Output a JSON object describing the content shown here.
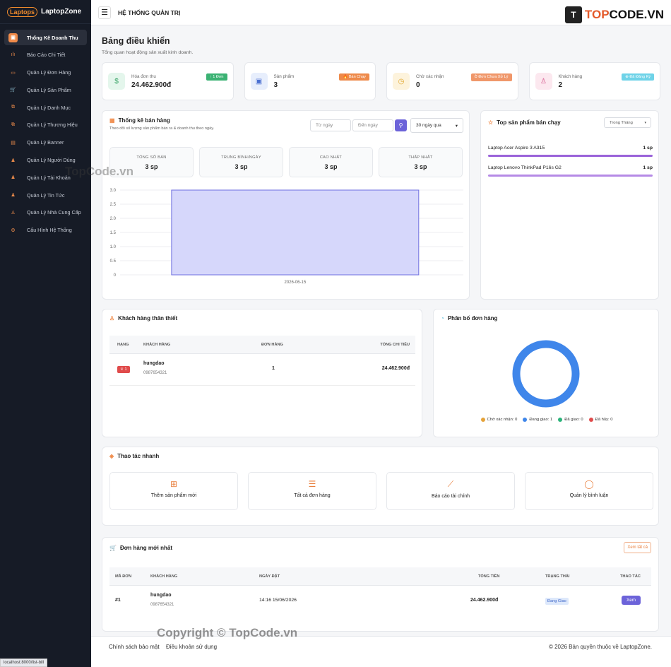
{
  "sidebar": {
    "logo_mark": "Laptops",
    "logo_text": "LaptopZone",
    "items": [
      {
        "label": "Thống Kê Doanh Thu",
        "icon": "box-icon",
        "active": true
      },
      {
        "label": "Báo Cáo Chi Tiết",
        "icon": "bar-chart-icon"
      },
      {
        "label": "Quản Lý Đơn Hàng",
        "icon": "card-icon"
      },
      {
        "label": "Quản Lý Sản Phẩm",
        "icon": "cart-icon"
      },
      {
        "label": "Quản Lý Danh Mục",
        "icon": "copy-icon"
      },
      {
        "label": "Quản Lý Thương Hiệu",
        "icon": "copy-icon"
      },
      {
        "label": "Quản Lý Banner",
        "icon": "file-icon"
      },
      {
        "label": "Quản Lý Người Dùng",
        "icon": "users-icon"
      },
      {
        "label": "Quản Lý Tài Khoản",
        "icon": "users-icon"
      },
      {
        "label": "Quản Lý Tin Tức",
        "icon": "users-icon"
      },
      {
        "label": "Quản Lý Nhà Cung Cấp",
        "icon": "user-icon"
      },
      {
        "label": "Cấu Hình Hệ Thống",
        "icon": "gear-icon"
      }
    ]
  },
  "header": {
    "title": "HỆ THỐNG QUẢN TRỊ",
    "brand_a": "TOP",
    "brand_b": "CODE.VN",
    "brand_mark": "T"
  },
  "page": {
    "title": "Bảng điều khiển",
    "subtitle": "Tổng quan hoạt động sản xuất kinh doanh."
  },
  "stats": [
    {
      "label": "Hóa đơn thu",
      "value": "24.462.900đ",
      "badge": "↑ 1 Đơn",
      "badge_color": "#3bb273",
      "icon": "$",
      "icon_bg": "#e4f6ec",
      "icon_color": "#2e9e5e"
    },
    {
      "label": "Sản phẩm",
      "value": "3",
      "badge": "🔥 Bán Chạy",
      "badge_color": "#ee8a4a",
      "icon": "▣",
      "icon_bg": "#e7eefc",
      "icon_color": "#4a6fd1"
    },
    {
      "label": "Chờ xác nhận",
      "value": "0",
      "badge": "⏱ Đơn Chưa Xử Lý",
      "badge_color": "#f0976a",
      "icon": "◷",
      "icon_bg": "#fdf3dc",
      "icon_color": "#e0a52a"
    },
    {
      "label": "Khách hàng",
      "value": "2",
      "badge": "⊕ Đã Đăng Ký",
      "badge_color": "#6fd3e8",
      "icon": "♙",
      "icon_bg": "#fce8ef",
      "icon_color": "#d4538a"
    }
  ],
  "sales": {
    "title": "Thống kê bán hàng",
    "subtitle": "Theo dõi số lượng sản phẩm bán ra & doanh thu theo ngày.",
    "from_placeholder": "Từ ngày",
    "to_placeholder": "Đến ngày",
    "range": "30 ngày qua",
    "minis": [
      {
        "label": "TỔNG SỐ BÁN",
        "value": "3 sp"
      },
      {
        "label": "TRUNG BÌNH/NGÀY",
        "value": "3 sp"
      },
      {
        "label": "CAO NHẤT",
        "value": "3 sp"
      },
      {
        "label": "THẤP NHẤT",
        "value": "3 sp"
      }
    ]
  },
  "chart_data": {
    "type": "bar",
    "categories": [
      "2026-06-15"
    ],
    "values": [
      3
    ],
    "title": "",
    "xlabel": "",
    "ylabel": "",
    "ylim": [
      0,
      3
    ],
    "yticks": [
      "3.0",
      "2.5",
      "2.0",
      "1.5",
      "1.0",
      "0.5",
      "0"
    ],
    "grid": true,
    "bar_color": "#d6d7fb",
    "bar_border": "#6f6fe0"
  },
  "top_products": {
    "title": "Top sản phẩm bán chạy",
    "filter": "Trong Tháng",
    "items": [
      {
        "name": "Laptop Acer Aspire 3 A315",
        "qty": "1 sp",
        "color": "#9a63d9"
      },
      {
        "name": "Laptop Lenovo ThinkPad P16s G2",
        "qty": "1 sp",
        "color": "#b58ae6"
      }
    ]
  },
  "loyal": {
    "title": "Khách hàng thân thiết",
    "headers": [
      "HẠNG",
      "KHÁCH HÀNG",
      "ĐƠN HÀNG",
      "TỔNG CHI TIÊU"
    ],
    "rows": [
      {
        "rank": "♕ 1",
        "name": "hungdao",
        "phone": "0987654321",
        "orders": "1",
        "total": "24.462.900đ"
      }
    ]
  },
  "distribution": {
    "title": "Phân bố đơn hàng",
    "legend": [
      {
        "label": "Chờ xác nhận: 0",
        "color": "#e5a33a",
        "value": 0
      },
      {
        "label": "Đang giao: 1",
        "color": "#3f86ea",
        "value": 1
      },
      {
        "label": "Đã giao: 0",
        "color": "#2bb37a",
        "value": 0
      },
      {
        "label": "Đã hủy: 0",
        "color": "#e04b4b",
        "value": 0
      }
    ]
  },
  "quick": {
    "title": "Thao tác nhanh",
    "actions": [
      {
        "label": "Thêm sản phẩm mới",
        "icon": "⊞"
      },
      {
        "label": "Tất cả đơn hàng",
        "icon": "☰"
      },
      {
        "label": "Báo cáo tài chính",
        "icon": "⟋"
      },
      {
        "label": "Quản lý bình luận",
        "icon": "◯"
      }
    ]
  },
  "orders": {
    "title": "Đơn hàng mới nhất",
    "view_all": "Xem tất cả",
    "headers": [
      "MÃ ĐƠN",
      "KHÁCH HÀNG",
      "NGÀY ĐẶT",
      "TỔNG TIỀN",
      "TRẠNG THÁI",
      "THAO TÁC"
    ],
    "rows": [
      {
        "id": "#1",
        "name": "hungdao",
        "phone": "0987654321",
        "date": "14:16 15/06/2026",
        "total": "24.462.900đ",
        "status": "Đang Giao",
        "action": "Xem"
      }
    ]
  },
  "footer": {
    "privacy": "Chính sách bảo mật",
    "terms": "Điều khoản sử dụng",
    "copyright": "© 2026 Bản quyền thuộc về  LaptopZone."
  },
  "watermark": {
    "copy": "Copyright © TopCode.vn",
    "mid": "TopCode.vn"
  },
  "status_url": "localhost:8000/list-bill"
}
